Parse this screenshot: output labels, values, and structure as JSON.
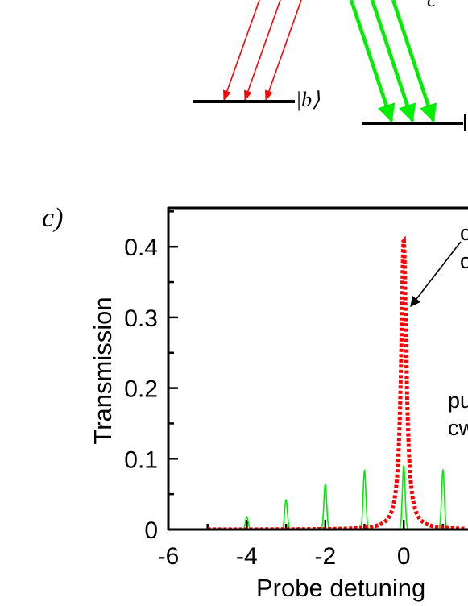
{
  "diagram": {
    "level_b_label": "|b⟩",
    "level_c_partial": "c",
    "colors": {
      "red": "#ff0000",
      "green": "#00ee00",
      "black": "#000000"
    }
  },
  "panel_label": "c)",
  "chart_data": {
    "type": "line",
    "xlabel": "Probe detuning",
    "ylabel": "Transmission",
    "xlim": [
      -6,
      1.6
    ],
    "ylim": [
      0,
      0.45
    ],
    "x_ticks": [
      "-6",
      "-4",
      "-2",
      "0"
    ],
    "y_ticks": [
      "0",
      "0.1",
      "0.2",
      "0.3",
      "0.4"
    ],
    "annotations": [
      {
        "text": "c",
        "note": "partially visible, top right, arrow to red peak"
      },
      {
        "text": "c",
        "note": "partially visible second line"
      },
      {
        "text": "pu",
        "note": "partially visible"
      },
      {
        "text": "cw",
        "note": "partially visible"
      }
    ],
    "series": [
      {
        "style": "red-dotted",
        "color": "#ff0000",
        "peak_x": 0,
        "peak_y": 0.41,
        "width": 0.08,
        "x_range": [
          -5,
          1.6
        ]
      },
      {
        "style": "green-solid",
        "color": "#00ee00",
        "comb_peaks": [
          {
            "x": -4,
            "y": 0.018
          },
          {
            "x": -3,
            "y": 0.042
          },
          {
            "x": -2,
            "y": 0.064
          },
          {
            "x": -1,
            "y": 0.083
          },
          {
            "x": 0,
            "y": 0.09
          },
          {
            "x": 1,
            "y": 0.084
          }
        ]
      }
    ]
  }
}
